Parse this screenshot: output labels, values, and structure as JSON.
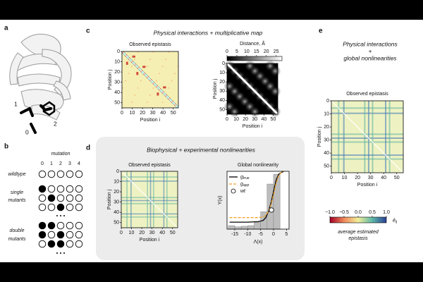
{
  "panel_labels": [
    "a",
    "b",
    "c",
    "d",
    "e"
  ],
  "a": {
    "residue_labels": [
      "1",
      "2",
      "0"
    ]
  },
  "b": {
    "title": "mutation",
    "columns": [
      "0",
      "1",
      "2",
      "3",
      "4"
    ],
    "groups": [
      {
        "label": [
          "wildtype"
        ],
        "rows": [
          [
            0,
            0,
            0,
            0,
            0
          ]
        ]
      },
      {
        "label": [
          "single",
          "mutants"
        ],
        "rows": [
          [
            1,
            0,
            0,
            0,
            0
          ],
          [
            0,
            1,
            0,
            0,
            0
          ],
          [
            0,
            0,
            1,
            0,
            0
          ]
        ]
      },
      {
        "label": [
          "double",
          "mutants"
        ],
        "rows": [
          [
            1,
            1,
            0,
            0,
            0
          ],
          [
            1,
            0,
            1,
            0,
            0
          ],
          [
            0,
            1,
            1,
            0,
            0
          ]
        ]
      }
    ]
  },
  "c": {
    "title": "Physical interactions + multiplicative map",
    "observed": {
      "title": "Observed epistasis",
      "xlabel": "Position i",
      "ylabel": "Position j",
      "lim": [
        0,
        55
      ],
      "ticks": [
        0,
        10,
        20,
        30,
        40,
        50
      ]
    },
    "distance": {
      "title": "Distance, Å",
      "xlabel": "Position i",
      "ylabel": "Position j",
      "lim": [
        0,
        55
      ],
      "ticks": [
        0,
        10,
        20,
        30,
        40,
        50
      ],
      "colorbar_lim": [
        0,
        28
      ],
      "colorbar_ticks": [
        0,
        5,
        10,
        15,
        20,
        25
      ]
    }
  },
  "d": {
    "title": "Biophysical + experimental nonlinearities",
    "observed": {
      "title": "Observed epistasis",
      "xlabel": "Position i",
      "ylabel": "Position j",
      "lim": [
        0,
        55
      ],
      "ticks": [
        0,
        10,
        20,
        30,
        40,
        50
      ]
    },
    "nonlinearity": {
      "type": "histogram",
      "title": "Global nonlinearity",
      "xlabel": "Λ(x)",
      "ylabel": "Y(x)",
      "xlim": [
        -18,
        6
      ],
      "ylim": [
        0,
        1
      ],
      "xticks": [
        -15,
        -10,
        -5,
        0,
        5
      ],
      "bins": [
        -17.5,
        -15,
        -12.5,
        -10,
        -7.5,
        -5,
        -2.5,
        0,
        2.5
      ],
      "counts": [
        0.06,
        0.04,
        0.05,
        0.06,
        0.12,
        0.3,
        0.78,
        0.95
      ],
      "hist_color": "#bdbdbd",
      "series": [
        {
          "name": {
            "symbol": "g",
            "subscript": "true"
          },
          "color": "#000000",
          "x": [
            -17,
            -10,
            -6,
            -4,
            -3,
            -2,
            -1,
            0,
            1,
            2,
            3,
            4
          ],
          "values": [
            0.12,
            0.12,
            0.13,
            0.15,
            0.2,
            0.3,
            0.45,
            0.65,
            0.85,
            0.95,
            0.98,
            1.0
          ]
        },
        {
          "name": {
            "symbol": "g",
            "subscript": "app"
          },
          "color": "#f0a020",
          "dashed": true,
          "x": [
            -17,
            -10,
            -6,
            -4,
            -3,
            -2,
            -1,
            0,
            1,
            2,
            3,
            4
          ],
          "values": [
            0.2,
            0.2,
            0.2,
            0.21,
            0.24,
            0.3,
            0.42,
            0.6,
            0.8,
            0.93,
            0.98,
            1.0
          ]
        },
        {
          "name": "wt",
          "marker": "circle",
          "color": "#ffffff",
          "x": [
            -0.8
          ],
          "values": [
            0.33
          ]
        }
      ]
    }
  },
  "e": {
    "title_lines": [
      "Physical interactions",
      "+",
      "global nonlinearities"
    ],
    "observed": {
      "title": "Observed epistasis",
      "xlabel": "Position i",
      "ylabel": "Position j",
      "lim": [
        0,
        55
      ],
      "ticks": [
        0,
        10,
        20,
        30,
        40,
        50
      ]
    },
    "colorbar": {
      "lim": [
        -1,
        1
      ],
      "ticks": [
        {
          "value": -1,
          "label": "−1.0"
        },
        {
          "value": -0.5,
          "label": "−0.5"
        },
        {
          "value": 0,
          "label": "0.0"
        },
        {
          "value": 0.5,
          "label": "0.5"
        },
        {
          "value": 1,
          "label": "1.0"
        }
      ],
      "symbol": "ê",
      "subscript": "ij",
      "caption_lines": [
        "average estimated",
        "epistasis"
      ]
    }
  }
}
